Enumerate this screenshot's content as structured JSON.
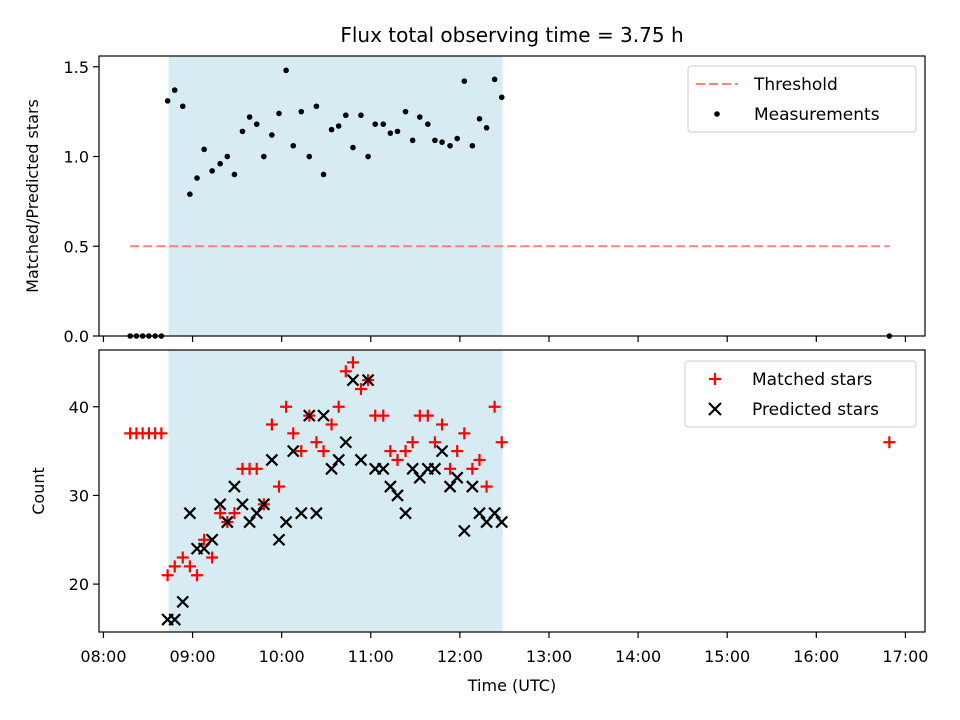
{
  "figure": {
    "title": "Flux total observing time = 3.75 h"
  },
  "chart_data": [
    {
      "type": "scatter",
      "ylabel": "Matched/Predicted stars",
      "xlim": [
        "08:00",
        "17:00"
      ],
      "xlim_hours": [
        7.95,
        17.22
      ],
      "ylim": [
        0,
        1.56
      ],
      "yticks": [
        0.0,
        0.5,
        1.0,
        1.5
      ],
      "ytick_labels": [
        "0.0",
        "0.5",
        "1.0",
        "1.5"
      ],
      "shaded_span": {
        "start": "08:44",
        "end": "12:29",
        "start_h": 8.73,
        "end_h": 12.48,
        "color": "#add8e6"
      },
      "threshold": {
        "name": "Threshold",
        "y": 0.5,
        "x_start_h": 8.3,
        "x_end_h": 16.82,
        "color": "#ff8080"
      },
      "legend": {
        "placement": "top-right",
        "entries": [
          "Threshold",
          "Measurements"
        ]
      },
      "series": [
        {
          "name": "Measurements",
          "color": "#000000",
          "points": [
            [
              8.3,
              0.0
            ],
            [
              8.37,
              0.0
            ],
            [
              8.44,
              0.0
            ],
            [
              8.51,
              0.0
            ],
            [
              8.58,
              0.0
            ],
            [
              8.65,
              0.0
            ],
            [
              8.72,
              1.31
            ],
            [
              8.8,
              1.37
            ],
            [
              8.89,
              1.28
            ],
            [
              8.97,
              0.79
            ],
            [
              9.05,
              0.88
            ],
            [
              9.13,
              1.04
            ],
            [
              9.22,
              0.92
            ],
            [
              9.31,
              0.96
            ],
            [
              9.39,
              1.0
            ],
            [
              9.47,
              0.9
            ],
            [
              9.56,
              1.14
            ],
            [
              9.64,
              1.22
            ],
            [
              9.72,
              1.18
            ],
            [
              9.8,
              1.0
            ],
            [
              9.89,
              1.12
            ],
            [
              9.97,
              1.24
            ],
            [
              10.05,
              1.48
            ],
            [
              10.13,
              1.06
            ],
            [
              10.22,
              1.25
            ],
            [
              10.31,
              1.0
            ],
            [
              10.39,
              1.28
            ],
            [
              10.47,
              0.9
            ],
            [
              10.56,
              1.15
            ],
            [
              10.64,
              1.17
            ],
            [
              10.72,
              1.23
            ],
            [
              10.8,
              1.05
            ],
            [
              10.89,
              1.23
            ],
            [
              10.97,
              1.0
            ],
            [
              11.05,
              1.18
            ],
            [
              11.14,
              1.18
            ],
            [
              11.22,
              1.13
            ],
            [
              11.3,
              1.14
            ],
            [
              11.39,
              1.25
            ],
            [
              11.47,
              1.09
            ],
            [
              11.55,
              1.22
            ],
            [
              11.64,
              1.18
            ],
            [
              11.72,
              1.09
            ],
            [
              11.8,
              1.08
            ],
            [
              11.89,
              1.06
            ],
            [
              11.97,
              1.1
            ],
            [
              12.05,
              1.42
            ],
            [
              12.14,
              1.06
            ],
            [
              12.22,
              1.21
            ],
            [
              12.3,
              1.16
            ],
            [
              12.39,
              1.43
            ],
            [
              12.47,
              1.33
            ],
            [
              16.82,
              0.0
            ]
          ]
        }
      ]
    },
    {
      "type": "scatter",
      "xlabel": "Time (UTC)",
      "ylabel": "Count",
      "xlim": [
        "08:00",
        "17:00"
      ],
      "xlim_hours": [
        7.95,
        17.22
      ],
      "ylim": [
        14.6,
        46.4
      ],
      "yticks": [
        20,
        30,
        40
      ],
      "ytick_labels": [
        "20",
        "30",
        "40"
      ],
      "xticks_h": [
        8,
        9,
        10,
        11,
        12,
        13,
        14,
        15,
        16,
        17
      ],
      "xtick_labels": [
        "08:00",
        "09:00",
        "10:00",
        "11:00",
        "12:00",
        "13:00",
        "14:00",
        "15:00",
        "16:00",
        "17:00"
      ],
      "shaded_span": {
        "start": "08:44",
        "end": "12:29",
        "start_h": 8.73,
        "end_h": 12.48,
        "color": "#add8e6"
      },
      "legend": {
        "placement": "top-right",
        "entries": [
          "Matched stars",
          "Predicted stars"
        ]
      },
      "series": [
        {
          "name": "Matched stars",
          "color": "#ff0000",
          "marker": "plus",
          "points": [
            [
              8.3,
              37
            ],
            [
              8.37,
              37
            ],
            [
              8.44,
              37
            ],
            [
              8.51,
              37
            ],
            [
              8.58,
              37
            ],
            [
              8.65,
              37
            ],
            [
              8.72,
              21
            ],
            [
              8.8,
              22
            ],
            [
              8.89,
              23
            ],
            [
              8.97,
              22
            ],
            [
              9.05,
              21
            ],
            [
              9.13,
              25
            ],
            [
              9.22,
              23
            ],
            [
              9.31,
              28
            ],
            [
              9.39,
              27
            ],
            [
              9.47,
              28
            ],
            [
              9.56,
              33
            ],
            [
              9.64,
              33
            ],
            [
              9.72,
              33
            ],
            [
              9.8,
              29
            ],
            [
              9.89,
              38
            ],
            [
              9.97,
              31
            ],
            [
              10.05,
              40
            ],
            [
              10.13,
              37
            ],
            [
              10.22,
              35
            ],
            [
              10.31,
              39
            ],
            [
              10.39,
              36
            ],
            [
              10.47,
              35
            ],
            [
              10.56,
              38
            ],
            [
              10.64,
              40
            ],
            [
              10.72,
              44
            ],
            [
              10.8,
              45
            ],
            [
              10.89,
              42
            ],
            [
              10.97,
              43
            ],
            [
              11.05,
              39
            ],
            [
              11.14,
              39
            ],
            [
              11.22,
              35
            ],
            [
              11.3,
              34
            ],
            [
              11.39,
              35
            ],
            [
              11.47,
              36
            ],
            [
              11.55,
              39
            ],
            [
              11.64,
              39
            ],
            [
              11.72,
              36
            ],
            [
              11.8,
              38
            ],
            [
              11.89,
              33
            ],
            [
              11.97,
              35
            ],
            [
              12.05,
              37
            ],
            [
              12.14,
              33
            ],
            [
              12.22,
              34
            ],
            [
              12.3,
              31
            ],
            [
              12.39,
              40
            ],
            [
              12.47,
              36
            ],
            [
              16.82,
              36
            ]
          ]
        },
        {
          "name": "Predicted stars",
          "color": "#000000",
          "marker": "x",
          "points": [
            [
              8.72,
              16
            ],
            [
              8.8,
              16
            ],
            [
              8.89,
              18
            ],
            [
              8.97,
              28
            ],
            [
              9.05,
              24
            ],
            [
              9.13,
              24
            ],
            [
              9.22,
              25
            ],
            [
              9.31,
              29
            ],
            [
              9.39,
              27
            ],
            [
              9.47,
              31
            ],
            [
              9.56,
              29
            ],
            [
              9.64,
              27
            ],
            [
              9.72,
              28
            ],
            [
              9.8,
              29
            ],
            [
              9.89,
              34
            ],
            [
              9.97,
              25
            ],
            [
              10.05,
              27
            ],
            [
              10.13,
              35
            ],
            [
              10.22,
              28
            ],
            [
              10.31,
              39
            ],
            [
              10.39,
              28
            ],
            [
              10.47,
              39
            ],
            [
              10.56,
              33
            ],
            [
              10.64,
              34
            ],
            [
              10.72,
              36
            ],
            [
              10.8,
              43
            ],
            [
              10.89,
              34
            ],
            [
              10.97,
              43
            ],
            [
              11.05,
              33
            ],
            [
              11.14,
              33
            ],
            [
              11.22,
              31
            ],
            [
              11.3,
              30
            ],
            [
              11.39,
              28
            ],
            [
              11.47,
              33
            ],
            [
              11.55,
              32
            ],
            [
              11.64,
              33
            ],
            [
              11.72,
              33
            ],
            [
              11.8,
              35
            ],
            [
              11.89,
              31
            ],
            [
              11.97,
              32
            ],
            [
              12.05,
              26
            ],
            [
              12.14,
              31
            ],
            [
              12.22,
              28
            ],
            [
              12.3,
              27
            ],
            [
              12.39,
              28
            ],
            [
              12.47,
              27
            ]
          ]
        }
      ]
    }
  ]
}
